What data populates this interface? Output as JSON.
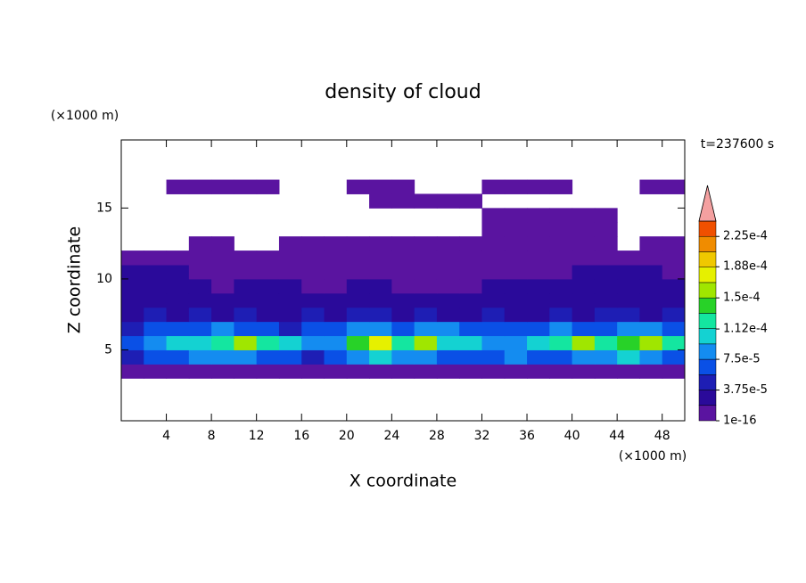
{
  "chart_data": {
    "type": "contour",
    "title": "density of cloud",
    "x_label": "X coordinate",
    "y_label": "Z coordinate",
    "x_unit": "(×1000 m)",
    "y_unit": "(×1000 m)",
    "annotation": "t=237600 s",
    "xlim": [
      0,
      50
    ],
    "ylim": [
      0,
      19.8
    ],
    "xticks": [
      4,
      8,
      12,
      16,
      20,
      24,
      28,
      32,
      36,
      40,
      44,
      48
    ],
    "yticks": [
      5,
      10,
      15
    ],
    "x": [
      1,
      3,
      5,
      7,
      9,
      11,
      13,
      15,
      17,
      19,
      21,
      23,
      25,
      27,
      29,
      31,
      33,
      35,
      37,
      39,
      41,
      43,
      45,
      47,
      49
    ],
    "y": [
      3.5,
      4.5,
      5.5,
      6.5,
      7.5,
      8.5,
      9.5,
      10.5,
      11.5,
      12.5,
      13.5,
      14.5,
      15.5,
      16.5
    ],
    "z": [
      [
        1e-05,
        1e-05,
        1e-05,
        1e-05,
        1e-05,
        1e-05,
        1e-05,
        1e-05,
        1e-05,
        1e-05,
        1e-05,
        1e-05,
        1e-05,
        1e-05,
        1e-05,
        1e-05,
        1e-05,
        1e-05,
        1e-05,
        1e-05,
        1e-05,
        1e-05,
        1e-05,
        1e-05,
        1e-05
      ],
      [
        4e-05,
        6e-05,
        7e-05,
        8e-05,
        9e-05,
        8e-05,
        7e-05,
        6e-05,
        5e-05,
        6e-05,
        9e-05,
        0.0001,
        9e-05,
        8e-05,
        7e-05,
        6e-05,
        7e-05,
        8e-05,
        7e-05,
        6e-05,
        8e-05,
        9e-05,
        0.0001,
        9e-05,
        7e-05
      ],
      [
        6e-05,
        8e-05,
        0.0001,
        0.00011,
        0.00013,
        0.00016,
        0.00012,
        0.0001,
        9e-05,
        8e-05,
        0.00014,
        0.00017,
        0.00013,
        0.00015,
        0.00011,
        0.0001,
        8e-05,
        9e-05,
        0.00011,
        0.00013,
        0.00015,
        0.00012,
        0.00014,
        0.00016,
        0.00012
      ],
      [
        5e-05,
        6e-05,
        7e-05,
        6e-05,
        8e-05,
        7e-05,
        6e-05,
        5e-05,
        6e-05,
        7e-05,
        9e-05,
        8e-05,
        7e-05,
        9e-05,
        8e-05,
        6e-05,
        7e-05,
        6e-05,
        7e-05,
        8e-05,
        7e-05,
        6e-05,
        8e-05,
        9e-05,
        6e-05
      ],
      [
        3e-05,
        4e-05,
        3e-05,
        4e-05,
        3e-05,
        4e-05,
        3e-05,
        3e-05,
        4e-05,
        3e-05,
        4e-05,
        4e-05,
        3e-05,
        4e-05,
        3e-05,
        3e-05,
        4e-05,
        3e-05,
        3e-05,
        4e-05,
        3e-05,
        4e-05,
        4e-05,
        3e-05,
        4e-05
      ],
      [
        2e-05,
        2e-05,
        3e-05,
        2e-05,
        2e-05,
        3e-05,
        2e-05,
        2e-05,
        2e-05,
        3e-05,
        2e-05,
        2e-05,
        2e-05,
        2e-05,
        2e-05,
        3e-05,
        2e-05,
        2e-05,
        2e-05,
        2e-05,
        3e-05,
        2e-05,
        2e-05,
        3e-05,
        2e-05
      ],
      [
        2e-05,
        3e-05,
        2e-05,
        2e-05,
        1e-05,
        2e-05,
        2e-05,
        2e-05,
        1e-05,
        1e-05,
        2e-05,
        2e-05,
        1e-05,
        1e-05,
        1e-05,
        1e-05,
        2e-05,
        2e-05,
        2e-05,
        2e-05,
        3e-05,
        2e-05,
        2e-05,
        3e-05,
        2e-05
      ],
      [
        2e-05,
        2e-05,
        2e-05,
        1e-05,
        1e-05,
        1e-05,
        1e-05,
        1e-05,
        1e-05,
        1e-05,
        1e-05,
        1e-05,
        1e-05,
        1e-05,
        1e-05,
        1e-05,
        1e-05,
        1e-05,
        1e-05,
        1e-05,
        2e-05,
        2e-05,
        2e-05,
        2e-05,
        1e-05
      ],
      [
        1e-05,
        1e-05,
        1e-05,
        1e-05,
        1e-05,
        1e-05,
        1e-05,
        1e-05,
        1e-05,
        1e-05,
        1e-05,
        1e-05,
        1e-05,
        1e-05,
        1e-05,
        1e-05,
        1e-05,
        1e-05,
        1e-05,
        1e-05,
        1e-05,
        1e-05,
        1e-05,
        1e-05,
        1e-05
      ],
      [
        null,
        null,
        null,
        1e-05,
        1e-05,
        null,
        null,
        1e-05,
        1e-05,
        1e-05,
        1e-05,
        1e-05,
        1e-05,
        1e-05,
        1e-05,
        1e-05,
        1e-05,
        1e-05,
        1e-05,
        1e-05,
        1e-05,
        1e-05,
        null,
        1e-05,
        1e-05
      ],
      [
        null,
        null,
        null,
        null,
        null,
        null,
        null,
        null,
        null,
        null,
        null,
        null,
        null,
        null,
        null,
        null,
        1e-05,
        1e-05,
        1e-05,
        1e-05,
        1e-05,
        1e-05,
        null,
        null,
        null
      ],
      [
        null,
        null,
        null,
        null,
        null,
        null,
        null,
        null,
        null,
        null,
        null,
        null,
        null,
        null,
        null,
        null,
        1e-05,
        1e-05,
        1e-05,
        1e-05,
        1e-05,
        1e-05,
        null,
        null,
        null
      ],
      [
        null,
        null,
        null,
        null,
        null,
        null,
        null,
        null,
        null,
        null,
        null,
        1e-05,
        1e-05,
        1e-05,
        1e-05,
        1e-05,
        null,
        null,
        null,
        null,
        null,
        null,
        null,
        null,
        null
      ],
      [
        null,
        null,
        1e-05,
        1e-05,
        1e-05,
        1e-05,
        1e-05,
        null,
        null,
        null,
        1e-05,
        1e-05,
        1e-05,
        null,
        null,
        null,
        1e-05,
        1e-05,
        1e-05,
        1e-05,
        null,
        null,
        null,
        1e-05,
        1e-05
      ]
    ],
    "levels": [
      1e-16,
      1.875e-05,
      3.75e-05,
      5.625e-05,
      7.5e-05,
      9.375e-05,
      0.0001125,
      0.00013125,
      0.00015,
      0.00016875,
      0.0001875,
      0.00020625,
      0.000225,
      0.00024375
    ],
    "colors": [
      "#5a14a0",
      "#2a0a9a",
      "#1e1eb4",
      "#0a50e6",
      "#148cf0",
      "#14d2d2",
      "#14e6a0",
      "#28d228",
      "#a0e600",
      "#e6f000",
      "#f0c800",
      "#f08c00",
      "#f05000",
      "#f4a0a0"
    ],
    "colorbar_ticks": [
      {
        "value": 1e-16,
        "label": "1e-16"
      },
      {
        "value": 3.75e-05,
        "label": "3.75e-5"
      },
      {
        "value": 7.5e-05,
        "label": "7.5e-5"
      },
      {
        "value": 0.000112,
        "label": "1.12e-4"
      },
      {
        "value": 0.00015,
        "label": "1.5e-4"
      },
      {
        "value": 0.000188,
        "label": "1.88e-4"
      },
      {
        "value": 0.000225,
        "label": "2.25e-4"
      }
    ]
  }
}
